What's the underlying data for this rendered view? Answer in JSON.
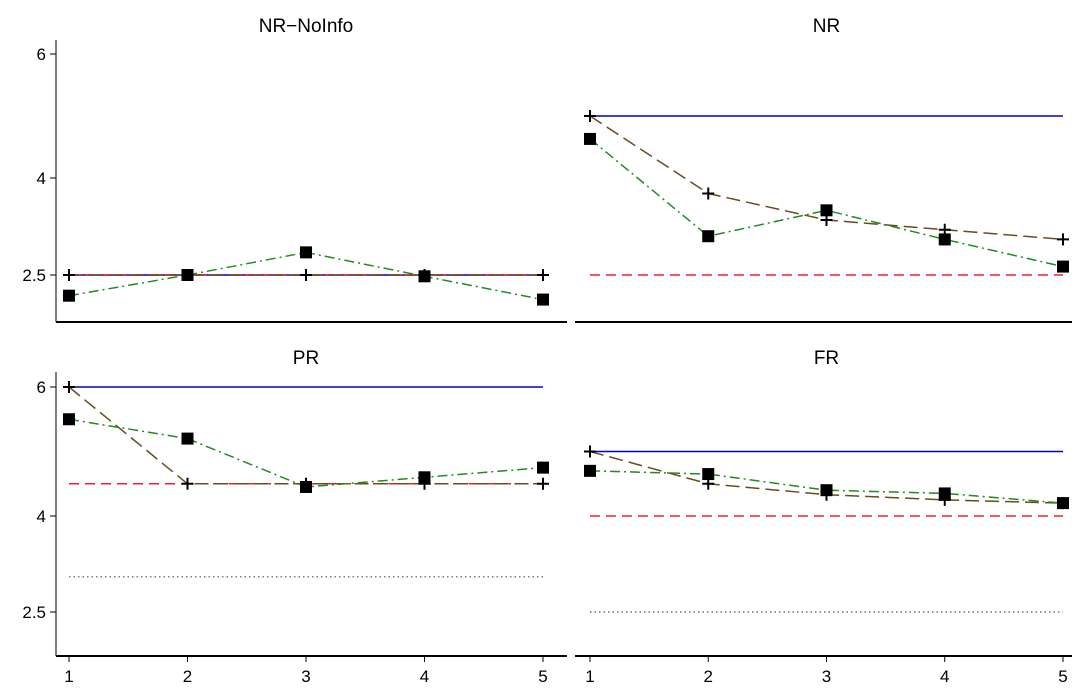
{
  "chart_data": [
    {
      "type": "line",
      "title": "NR−NoInfo",
      "x": [
        1,
        2,
        3,
        4,
        5
      ],
      "ylim": [
        1.75,
        6.5
      ],
      "yticks": [
        "2.5",
        "4",
        "6"
      ],
      "xticks": [],
      "series": [
        {
          "style": "solid",
          "color": "#0000cc",
          "marker": "none",
          "values": [
            2.5,
            2.5,
            2.5,
            2.5,
            2.5
          ]
        },
        {
          "style": "dashed",
          "color": "#ee2222",
          "marker": "none",
          "values": [
            2.5,
            2.5,
            2.5,
            2.5,
            2.5
          ]
        },
        {
          "style": "longdash",
          "color": "#6b4a1e",
          "marker": "plus",
          "values": [
            2.5,
            2.5,
            2.5,
            2.5,
            2.5
          ]
        },
        {
          "style": "dotdash",
          "color": "#228b22",
          "marker": "square",
          "values": [
            2.18,
            2.5,
            2.85,
            2.48,
            2.12
          ]
        }
      ]
    },
    {
      "type": "line",
      "title": "NR",
      "x": [
        1,
        2,
        3,
        4,
        5
      ],
      "ylim": [
        1.75,
        6.5
      ],
      "yticks": [],
      "xticks": [],
      "series": [
        {
          "style": "solid",
          "color": "#0000cc",
          "marker": "none",
          "values": [
            5.0,
            5.0,
            5.0,
            5.0,
            5.0
          ]
        },
        {
          "style": "dashed",
          "color": "#ee2222",
          "marker": "none",
          "values": [
            2.5,
            2.5,
            2.5,
            2.5,
            2.5
          ]
        },
        {
          "style": "longdash",
          "color": "#6b4a1e",
          "marker": "plus",
          "values": [
            5.0,
            3.76,
            3.35,
            3.2,
            3.05
          ]
        },
        {
          "style": "dotdash",
          "color": "#228b22",
          "marker": "square",
          "values": [
            4.63,
            3.1,
            3.5,
            3.05,
            2.63
          ]
        }
      ]
    },
    {
      "type": "line",
      "title": "PR",
      "x": [
        1,
        2,
        3,
        4,
        5
      ],
      "ylim": [
        1.75,
        6.5
      ],
      "yticks": [
        "2.5",
        "4",
        "6"
      ],
      "xticks": [
        "1",
        "2",
        "3",
        "4",
        "5"
      ],
      "series": [
        {
          "style": "solid",
          "color": "#0000cc",
          "marker": "none",
          "values": [
            6.0,
            6.0,
            6.0,
            6.0,
            6.0
          ]
        },
        {
          "style": "dashed",
          "color": "#ee2222",
          "marker": "none",
          "values": [
            4.5,
            4.5,
            4.5,
            4.5,
            4.5
          ]
        },
        {
          "style": "dotted",
          "color": "#555555",
          "marker": "none",
          "values": [
            3.05,
            3.05,
            3.05,
            3.05,
            3.05
          ]
        },
        {
          "style": "longdash",
          "color": "#6b4a1e",
          "marker": "plus",
          "values": [
            6.0,
            4.5,
            4.5,
            4.5,
            4.5
          ]
        },
        {
          "style": "dotdash",
          "color": "#228b22",
          "marker": "square",
          "values": [
            5.5,
            5.2,
            4.45,
            4.6,
            4.75
          ]
        }
      ]
    },
    {
      "type": "line",
      "title": "FR",
      "x": [
        1,
        2,
        3,
        4,
        5
      ],
      "ylim": [
        1.75,
        6.5
      ],
      "yticks": [],
      "xticks": [
        "1",
        "2",
        "3",
        "4",
        "5"
      ],
      "series": [
        {
          "style": "solid",
          "color": "#0000cc",
          "marker": "none",
          "values": [
            5.0,
            5.0,
            5.0,
            5.0,
            5.0
          ]
        },
        {
          "style": "dashed",
          "color": "#ee2222",
          "marker": "none",
          "values": [
            4.0,
            4.0,
            4.0,
            4.0,
            4.0
          ]
        },
        {
          "style": "dotted",
          "color": "#555555",
          "marker": "none",
          "values": [
            2.5,
            2.5,
            2.5,
            2.5,
            2.5
          ]
        },
        {
          "style": "longdash",
          "color": "#6b4a1e",
          "marker": "plus",
          "values": [
            5.0,
            4.5,
            4.33,
            4.25,
            4.2
          ]
        },
        {
          "style": "dotdash",
          "color": "#228b22",
          "marker": "square",
          "values": [
            4.7,
            4.65,
            4.4,
            4.35,
            4.2
          ]
        }
      ]
    }
  ]
}
